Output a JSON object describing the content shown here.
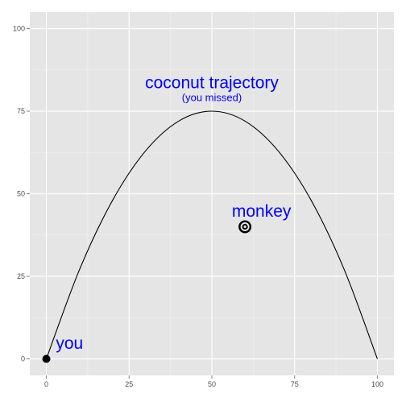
{
  "chart_data": {
    "type": "line",
    "title": "",
    "xlabel": "",
    "ylabel": "",
    "xlim": [
      -5,
      105
    ],
    "ylim": [
      -5,
      105
    ],
    "grid": true,
    "legend": "none",
    "x_ticks": [
      0,
      25,
      50,
      75,
      100
    ],
    "y_ticks": [
      0,
      25,
      50,
      75,
      100
    ],
    "series": [
      {
        "x": [
          0,
          10,
          20,
          30,
          40,
          50,
          60,
          70,
          80,
          90,
          100
        ],
        "y": [
          0,
          27,
          48,
          63,
          72,
          75,
          72,
          63,
          48,
          27,
          0
        ],
        "color": "#000000"
      }
    ],
    "points": [
      {
        "x": 0,
        "y": 0,
        "style": "filled-circle",
        "color": "#000000"
      },
      {
        "x": 60,
        "y": 40,
        "style": "target",
        "color": "#000000"
      }
    ],
    "annotations": [
      {
        "text": "coconut trajectory",
        "x": 50,
        "y": 82,
        "size": "large",
        "color": "#0000ff"
      },
      {
        "text": "(you missed)",
        "x": 50,
        "y": 78,
        "size": "small",
        "color": "#0000ff"
      },
      {
        "text": "monkey",
        "x": 65,
        "y": 43,
        "size": "large",
        "color": "#0000ff"
      },
      {
        "text": "you",
        "x": 7,
        "y": 3,
        "size": "large",
        "color": "#0000ff"
      }
    ],
    "colors": {
      "panel_background": "#e5e5e5",
      "grid_major": "#ffffff",
      "grid_minor": "#f2f2f2",
      "tick_text": "#4d4d4d",
      "annotation": "#0000ff"
    }
  }
}
